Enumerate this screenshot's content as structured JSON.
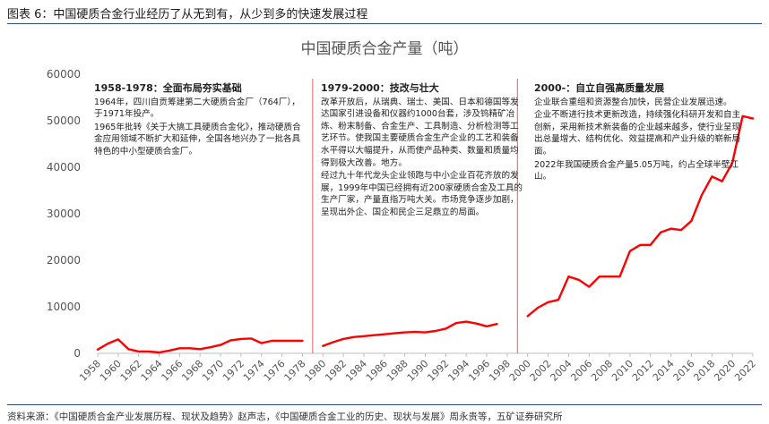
{
  "caption": "图表 6：中国硬质合金行业经历了从无到有，从少到多的快速发展过程",
  "source": "资料来源：《中国硬质合金产业发展历程、现状及趋势》赵声志，《中国硬质合金工业的历史、现状与发展》周永贵等，五矿证券研究所",
  "annotations": [
    {
      "title": "1958-1978：全面布局夯实基础",
      "paragraphs": [
        "1964年，四川自贡筹建第二大硬质合金厂（764厂），于1971年投产。",
        "1965年批转《关于大搞工具硬质合金化》，推动硬质合金应用领域不断扩大和延伸，全国各地兴办了一批各具特色的中小型硬质合金厂。"
      ]
    },
    {
      "title": "1979-2000：技改与壮大",
      "paragraphs": [
        "改革开放后，从瑞典、瑞士、美国、日本和德国等发达国家引进设备和仪器约1000台套，涉及钨精矿冶炼、粉末制备、合金生产、工具制造、分析检测等工艺环节。使我国主要硬质合金生产企业的工艺和装备水平得以大幅提升，从而使产品种类、数量和质量均得到极大改善。地方。",
        "经过九十年代龙头企业领跑与中小企业百花齐放的发展，1999年中国已经拥有近200家硬质合金及工具的生产厂家，产量直指万吨大关。市场竞争逐步加剧，呈现出外企、国企和民企三足鼎立的局面。"
      ]
    },
    {
      "title": "2000-：自立自强高质量发展",
      "paragraphs": [
        "企业联合重组和资源整合加快，民营企业发展迅速。",
        "企业不断进行技术更新改造，持续强化科研开发和自主创新，采用新技术新装备的企业越来越多，使行业呈现出总量增大、结构优化、效益提高和产业升级的崭新局面。",
        "2022年我国硬质合金产量5.05万吨，约占全球半壁江山。"
      ]
    }
  ],
  "chart_data": {
    "type": "line",
    "title": "中国硬质合金产量（吨）",
    "xlabel": "",
    "ylabel": "",
    "ylim": [
      0,
      60000
    ],
    "yticks": [
      0,
      10000,
      20000,
      30000,
      40000,
      50000,
      60000
    ],
    "ytick_labels": [
      "0",
      "10000",
      "20000",
      "30000",
      "40000",
      "50000",
      "60000"
    ],
    "xlim": [
      1958,
      2022
    ],
    "xticks": [
      1958,
      1960,
      1962,
      1964,
      1966,
      1968,
      1970,
      1972,
      1974,
      1976,
      1978,
      1980,
      1982,
      1984,
      1986,
      1988,
      1990,
      1992,
      1994,
      1996,
      1998,
      2000,
      2002,
      2004,
      2006,
      2008,
      2010,
      2012,
      2014,
      2016,
      2018,
      2020,
      2022
    ],
    "grid": false,
    "line_color": "#ff0000",
    "divider_color": "#e06060",
    "dividers": [
      1979,
      1999
    ],
    "segments": [
      {
        "x": [
          1958,
          1959,
          1960,
          1961,
          1962,
          1963,
          1964,
          1965,
          1966,
          1967,
          1968,
          1969,
          1970,
          1971,
          1972,
          1973,
          1974,
          1975,
          1976,
          1977,
          1978
        ],
        "y": [
          800,
          2100,
          3000,
          900,
          400,
          400,
          200,
          600,
          1100,
          1100,
          900,
          1300,
          1800,
          2800,
          3100,
          3200,
          2200,
          2700,
          2700,
          2700,
          2700
        ]
      },
      {
        "x": [
          1980,
          1981,
          1982,
          1983,
          1984,
          1985,
          1986,
          1987,
          1988,
          1989,
          1990,
          1991,
          1992,
          1993,
          1994,
          1995,
          1996,
          1997
        ],
        "y": [
          1600,
          2400,
          3100,
          3500,
          3700,
          3900,
          4100,
          4300,
          4500,
          4600,
          4500,
          4800,
          5300,
          6500,
          6800,
          6400,
          5800,
          6300
        ]
      },
      {
        "x": [
          2000,
          2001,
          2002,
          2003,
          2004,
          2005,
          2006,
          2007,
          2008,
          2009,
          2010,
          2011,
          2012,
          2013,
          2014,
          2015,
          2016,
          2017,
          2018,
          2019,
          2020,
          2021,
          2022
        ],
        "y": [
          8000,
          9800,
          11000,
          11500,
          16500,
          15800,
          14300,
          16500,
          16500,
          16500,
          22000,
          23300,
          23300,
          26000,
          26800,
          26500,
          28500,
          34000,
          38000,
          37000,
          41000,
          51000,
          50500
        ]
      }
    ]
  }
}
